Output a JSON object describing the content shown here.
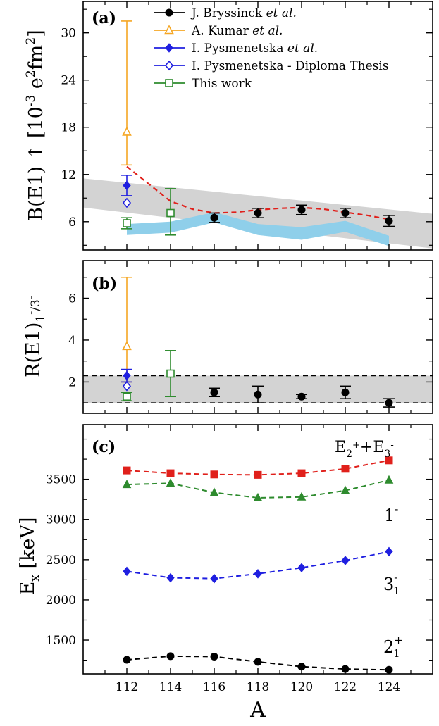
{
  "chart_data": [
    {
      "panel": "(a)",
      "type": "scatter",
      "ylabel_main": "B(E1) ↑ [10",
      "ylabel_exp": "-3",
      "ylabel_unit": " e",
      "ylabel_e_exp": "2",
      "ylabel_fm": "fm",
      "ylabel_fm_exp": "2",
      "ylabel_close": "]",
      "xlim": [
        110,
        126
      ],
      "ylim": [
        2.4,
        34
      ],
      "yticks": [
        6,
        12,
        18,
        24,
        30
      ],
      "legend": {
        "placement": "top-right",
        "entries": [
          {
            "name": "J. Bryssinck ",
            "name_italic": "et al.",
            "color": "#000000",
            "marker": "circle-filled"
          },
          {
            "name": "A. Kumar ",
            "name_italic": "et al.",
            "color": "#f5a623",
            "marker": "triangle-open"
          },
          {
            "name": "I. Pysmenetska ",
            "name_italic": "et al.",
            "color": "#1f1fe0",
            "marker": "diamond-filled"
          },
          {
            "name": "I. Pysmenetska - Diploma Thesis",
            "name_italic": "",
            "color": "#1f1fe0",
            "marker": "diamond-open"
          },
          {
            "name": "This work",
            "name_italic": "",
            "color": "#2e8b2e",
            "marker": "square-open"
          }
        ]
      },
      "bands": [
        {
          "name": "gray-band",
          "color": "#d3d3d3",
          "x": [
            110,
            126
          ],
          "upper": [
            11.5,
            7.0
          ],
          "lower": [
            7.8,
            2.6
          ]
        },
        {
          "name": "blue-band",
          "color": "#8fcfea",
          "x": [
            112,
            114,
            116,
            118,
            120,
            122,
            124
          ],
          "upper": [
            5.7,
            6.0,
            7.2,
            5.7,
            5.3,
            6.1,
            4.2
          ],
          "lower": [
            4.3,
            4.6,
            5.9,
            4.3,
            3.7,
            4.7,
            2.9
          ]
        }
      ],
      "curve": {
        "name": "red-dashed-curve",
        "color": "#e0201b",
        "x": [
          112,
          113,
          114,
          115,
          116,
          117,
          118,
          119,
          120,
          121,
          122,
          123,
          124
        ],
        "y": [
          13.0,
          10.8,
          8.6,
          7.6,
          7.1,
          7.2,
          7.5,
          7.7,
          7.8,
          7.6,
          7.2,
          6.8,
          6.3
        ]
      },
      "series": [
        {
          "name": "J. Bryssinck et al.",
          "color": "#000000",
          "marker": "circle-filled",
          "x": [
            116,
            118,
            120,
            122,
            124
          ],
          "y": [
            6.5,
            7.1,
            7.5,
            7.1,
            6.1
          ],
          "err": [
            0.6,
            0.6,
            0.6,
            0.6,
            0.7
          ]
        },
        {
          "name": "A. Kumar et al.",
          "color": "#f5a623",
          "marker": "triangle-open",
          "x": [
            112
          ],
          "y": [
            17.4
          ],
          "err_low": [
            4.2
          ],
          "err_high": [
            14.1
          ]
        },
        {
          "name": "I. Pysmenetska et al.",
          "color": "#1f1fe0",
          "marker": "diamond-filled",
          "x": [
            112
          ],
          "y": [
            10.6
          ],
          "err": [
            1.3
          ]
        },
        {
          "name": "I. Pysmenetska - Diploma Thesis",
          "color": "#1f1fe0",
          "marker": "diamond-open",
          "x": [
            112
          ],
          "y": [
            8.4
          ],
          "err": [
            0
          ]
        },
        {
          "name": "This work",
          "color": "#2e8b2e",
          "marker": "square-open",
          "x": [
            112,
            114
          ],
          "y": [
            5.8,
            7.1
          ],
          "err_low": [
            0.7,
            2.8
          ],
          "err_high": [
            0.7,
            3.1
          ]
        }
      ]
    },
    {
      "panel": "(b)",
      "type": "scatter",
      "ylabel_main": "R(E1)",
      "ylabel_sub": "1",
      "ylabel_sup1": "-",
      "ylabel_slash": "/3",
      "ylabel_sup2": "-",
      "xlim": [
        110,
        126
      ],
      "ylim": [
        0.5,
        7.8
      ],
      "yticks": [
        2,
        4,
        6
      ],
      "band": {
        "name": "gray-band",
        "color": "#d3d3d3",
        "lower": 1.0,
        "upper": 2.3
      },
      "series": [
        {
          "name": "J. Bryssinck et al.",
          "color": "#000000",
          "marker": "circle-filled",
          "x": [
            116,
            118,
            120,
            122,
            124
          ],
          "y": [
            1.5,
            1.4,
            1.3,
            1.5,
            1.0
          ],
          "err": [
            0.2,
            0.4,
            0.1,
            0.3,
            0.2
          ]
        },
        {
          "name": "A. Kumar et al.",
          "color": "#f5a623",
          "marker": "triangle-open",
          "x": [
            112
          ],
          "y": [
            3.7
          ],
          "err_low": [
            1.7
          ],
          "err_high": [
            3.3
          ]
        },
        {
          "name": "I. Pysmenetska et al.",
          "color": "#1f1fe0",
          "marker": "diamond-filled",
          "x": [
            112
          ],
          "y": [
            2.3
          ],
          "err": [
            0.3
          ]
        },
        {
          "name": "I. Pysmenetska - Diploma Thesis",
          "color": "#1f1fe0",
          "marker": "diamond-open",
          "x": [
            112
          ],
          "y": [
            1.8
          ],
          "err": [
            0
          ]
        },
        {
          "name": "This work",
          "color": "#2e8b2e",
          "marker": "square-open",
          "x": [
            112,
            114
          ],
          "y": [
            1.3,
            2.4
          ],
          "err_low": [
            0.2,
            1.1
          ],
          "err_high": [
            0.2,
            1.1
          ]
        }
      ]
    },
    {
      "panel": "(c)",
      "type": "line",
      "ylabel_main": "E",
      "ylabel_sub": "x",
      "ylabel_unit": " [keV]",
      "xlabel": "A",
      "xlim": [
        110,
        126
      ],
      "ylim": [
        1080,
        4180
      ],
      "yticks": [
        1500,
        2000,
        2500,
        3000,
        3500
      ],
      "xticks": [
        112,
        114,
        116,
        118,
        120,
        122,
        124
      ],
      "series": [
        {
          "name": "E2++E3-",
          "label_base1": "E",
          "label_sub1": "2",
          "label_sup1": "+",
          "label_plus": "+E",
          "label_sub2": "3",
          "label_sup2": "-",
          "color": "#e0201b",
          "marker": "square-filled",
          "x": [
            112,
            114,
            116,
            118,
            120,
            122,
            124
          ],
          "y": [
            3610,
            3575,
            3560,
            3555,
            3575,
            3630,
            3735
          ]
        },
        {
          "name": "1-",
          "label_base": "1",
          "label_sup": "-",
          "color": "#2e8b2e",
          "marker": "triangle-filled",
          "x": [
            112,
            114,
            116,
            118,
            120,
            122,
            124
          ],
          "y": [
            3435,
            3450,
            3335,
            3270,
            3280,
            3360,
            3490
          ]
        },
        {
          "name": "3-1",
          "label_base": "3",
          "label_sup": "-",
          "label_sub": "1",
          "color": "#1f1fe0",
          "marker": "diamond-filled",
          "x": [
            112,
            114,
            116,
            118,
            120,
            122,
            124
          ],
          "y": [
            2355,
            2275,
            2265,
            2325,
            2400,
            2490,
            2600
          ]
        },
        {
          "name": "2+1",
          "label_base": "2",
          "label_sup": "+",
          "label_sub": "1",
          "color": "#000000",
          "marker": "circle-filled",
          "x": [
            112,
            114,
            116,
            118,
            120,
            122,
            124
          ],
          "y": [
            1255,
            1300,
            1295,
            1230,
            1170,
            1140,
            1130
          ]
        }
      ]
    }
  ]
}
